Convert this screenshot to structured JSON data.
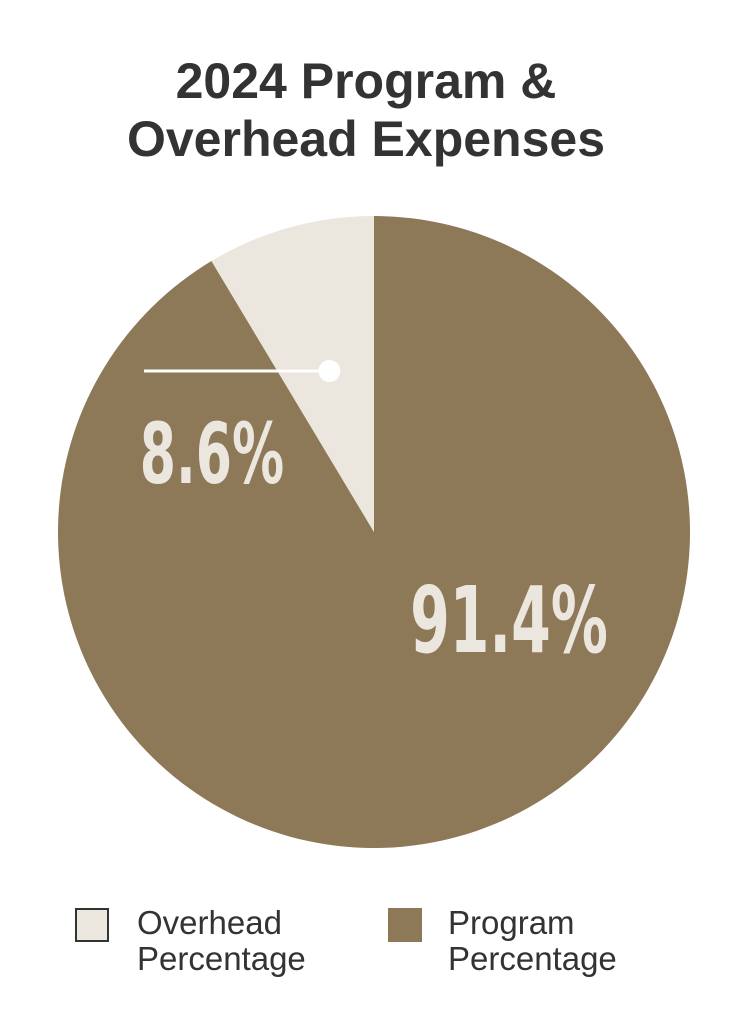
{
  "title_lines": [
    "2024 Program &",
    "Overhead Expenses"
  ],
  "colors": {
    "program": "#8d7858",
    "overhead": "#ebe6de",
    "label_text": "#ebe6de",
    "title_text": "#333333",
    "leader_line": "#ffffff",
    "swatch_border": "#333333"
  },
  "chart_data": {
    "type": "pie",
    "title": "2024 Program & Overhead Expenses",
    "slices": [
      {
        "name": "Overhead Percentage",
        "value": 8.6,
        "label": "8.6%",
        "color": "#ebe6de"
      },
      {
        "name": "Program Percentage",
        "value": 91.4,
        "label": "91.4%",
        "color": "#8d7858"
      }
    ],
    "start_angle": "12 o'clock",
    "direction": "counter-clockwise for overhead slice",
    "legend_position": "bottom"
  },
  "legend": [
    {
      "line1": "Overhead",
      "line2": "Percentage",
      "color": "#ebe6de"
    },
    {
      "line1": "Program",
      "line2": "Percentage",
      "color": "#8d7858"
    }
  ]
}
